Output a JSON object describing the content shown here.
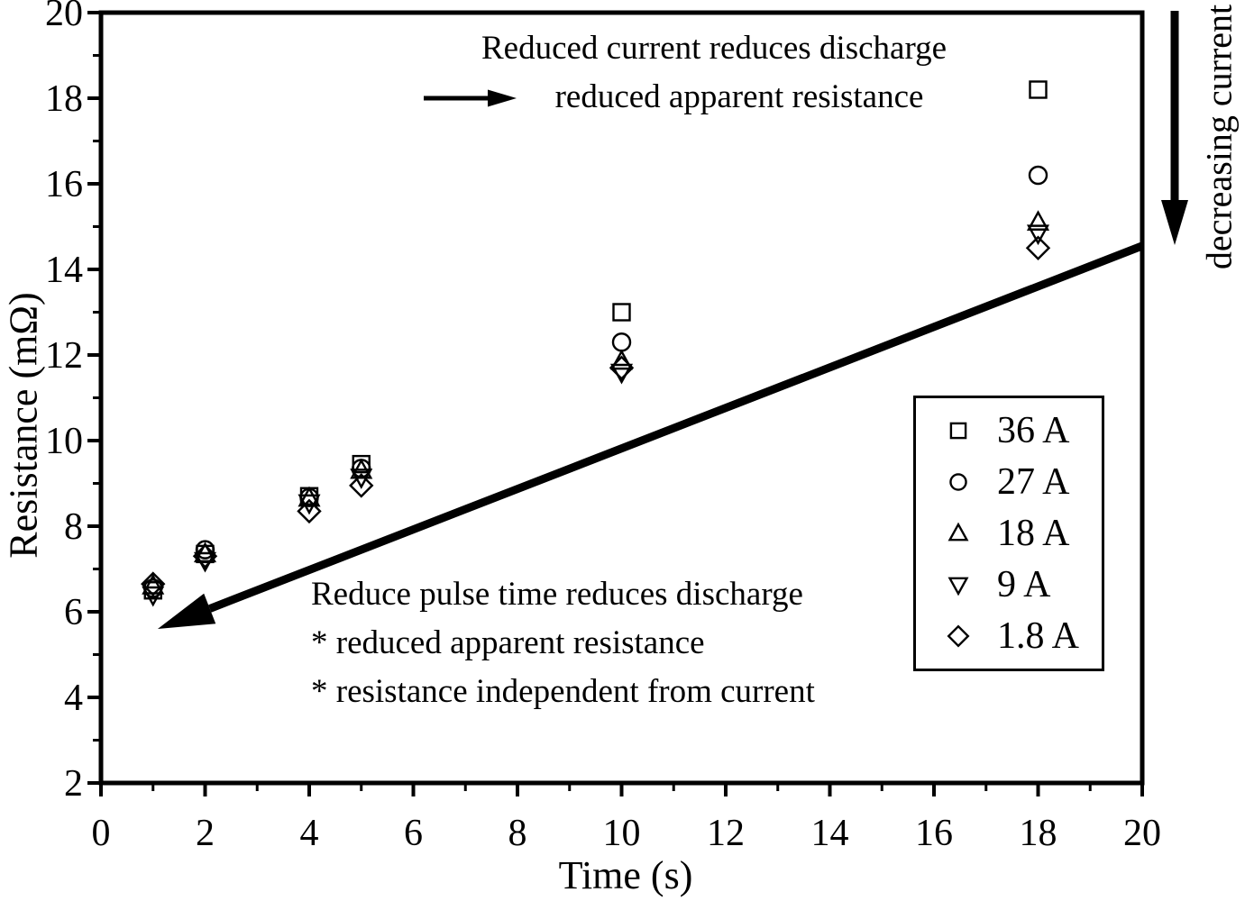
{
  "figure": {
    "background": "#ffffff",
    "foreground": "#000000"
  },
  "chart_data": {
    "type": "scatter",
    "title": "",
    "xlabel": "Time (s)",
    "ylabel": "Resistance (mΩ)",
    "xlim": [
      0,
      20
    ],
    "ylim": [
      2,
      20
    ],
    "grid": false,
    "legend_position": "center-right",
    "x_major_ticks": [
      0,
      2,
      4,
      6,
      8,
      10,
      12,
      14,
      16,
      18,
      20
    ],
    "x_minor_ticks": [
      1,
      3,
      5,
      7,
      9,
      11,
      13,
      15,
      17,
      19
    ],
    "y_major_ticks": [
      2,
      4,
      6,
      8,
      10,
      12,
      14,
      16,
      18,
      20
    ],
    "y_minor_ticks": [
      3,
      5,
      7,
      9,
      11,
      13,
      15,
      17,
      19
    ],
    "series": [
      {
        "name": "36 A",
        "marker": "square",
        "points": [
          [
            1,
            6.5
          ],
          [
            2,
            7.35
          ],
          [
            4,
            8.7
          ],
          [
            5,
            9.45
          ],
          [
            10,
            13.0
          ],
          [
            18,
            18.2
          ]
        ]
      },
      {
        "name": "27 A",
        "marker": "circle",
        "points": [
          [
            1,
            6.55
          ],
          [
            2,
            7.45
          ],
          [
            4,
            8.67
          ],
          [
            5,
            9.35
          ],
          [
            10,
            12.3
          ],
          [
            18,
            16.2
          ]
        ]
      },
      {
        "name": "18 A",
        "marker": "triangle-up",
        "points": [
          [
            1,
            6.6
          ],
          [
            2,
            7.35
          ],
          [
            4,
            8.65
          ],
          [
            5,
            9.3
          ],
          [
            10,
            11.85
          ],
          [
            18,
            15.1
          ]
        ]
      },
      {
        "name": "9 A",
        "marker": "triangle-down",
        "points": [
          [
            1,
            6.4
          ],
          [
            2,
            7.2
          ],
          [
            4,
            8.55
          ],
          [
            5,
            9.15
          ],
          [
            10,
            11.6
          ],
          [
            18,
            14.85
          ]
        ]
      },
      {
        "name": "1.8 A",
        "marker": "diamond",
        "points": [
          [
            1,
            6.65
          ],
          [
            2,
            7.3
          ],
          [
            4,
            8.35
          ],
          [
            5,
            8.95
          ],
          [
            10,
            11.7
          ],
          [
            18,
            14.5
          ]
        ]
      }
    ],
    "annotations": {
      "top_line1": "Reduced current reduces discharge",
      "top_line2": "reduced apparent resistance",
      "mid_line1": "Reduce pulse time reduces discharge",
      "mid_line2": "* reduced apparent resistance",
      "mid_line3": "* resistance independent from current",
      "right_vertical": "decreasing current",
      "arrows": [
        {
          "name": "reduced-apparent-resistance-arrow",
          "direction": "right"
        },
        {
          "name": "reduce-pulse-time-arrow",
          "direction": "down-left",
          "from_data": [
            20,
            14.55
          ],
          "to_data": [
            1.09,
            5.6
          ]
        },
        {
          "name": "decreasing-current-arrow",
          "direction": "down"
        }
      ]
    }
  }
}
